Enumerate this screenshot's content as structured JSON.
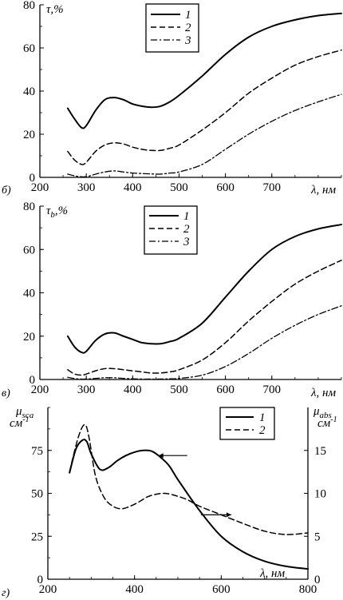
{
  "chart_data": [
    {
      "type": "line",
      "panel_label": "б)",
      "ylabel": "τ,%",
      "xlabel": "λ, нм",
      "xlim": [
        200,
        850
      ],
      "ylim": [
        0,
        80
      ],
      "xticks": [
        200,
        300,
        400,
        500,
        600,
        700
      ],
      "yticks": [
        0,
        20,
        40,
        60,
        80
      ],
      "legend": {
        "placement": "top-center",
        "entries": [
          "1",
          "2",
          "3"
        ]
      },
      "series": [
        {
          "name": "1",
          "style": "solid",
          "x": [
            260,
            275,
            290,
            300,
            320,
            340,
            360,
            380,
            400,
            420,
            440,
            460,
            480,
            500,
            550,
            600,
            650,
            700,
            750,
            800,
            850
          ],
          "y": [
            32,
            27,
            23,
            24,
            31,
            36,
            37,
            36,
            34,
            33,
            32.5,
            33,
            35,
            38,
            47,
            57,
            65,
            70,
            73,
            75,
            76
          ]
        },
        {
          "name": "2",
          "style": "dashed",
          "x": [
            260,
            275,
            290,
            300,
            320,
            340,
            360,
            380,
            400,
            420,
            440,
            460,
            480,
            500,
            550,
            600,
            650,
            700,
            750,
            800,
            850
          ],
          "y": [
            12,
            8,
            6,
            7,
            12,
            15,
            16,
            15.5,
            14,
            13,
            12.5,
            12.5,
            13.5,
            15,
            22,
            30,
            39,
            46,
            52,
            56,
            59
          ]
        },
        {
          "name": "3",
          "style": "dash-dot",
          "x": [
            260,
            280,
            300,
            320,
            340,
            360,
            380,
            400,
            420,
            440,
            460,
            480,
            500,
            550,
            600,
            650,
            700,
            750,
            800,
            850
          ],
          "y": [
            1.5,
            0.5,
            0.3,
            1.5,
            2.5,
            3,
            2.5,
            2,
            1.8,
            1.6,
            1.5,
            2,
            2.5,
            6,
            13,
            20,
            26,
            31,
            35,
            38.5
          ]
        }
      ]
    },
    {
      "type": "line",
      "panel_label": "в)",
      "ylabel": "τb,%",
      "ylabel_main": "τ",
      "ylabel_sub": "b",
      "ylabel_suffix": ",%",
      "xlabel": "λ, нм",
      "xlim": [
        200,
        850
      ],
      "ylim": [
        0,
        80
      ],
      "xticks": [
        200,
        300,
        400,
        500,
        600,
        700
      ],
      "yticks": [
        0,
        20,
        40,
        60,
        80
      ],
      "legend": {
        "placement": "top-center",
        "entries": [
          "1",
          "2",
          "3"
        ]
      },
      "series": [
        {
          "name": "1",
          "style": "solid",
          "x": [
            260,
            275,
            290,
            300,
            320,
            340,
            360,
            380,
            400,
            420,
            440,
            460,
            480,
            500,
            550,
            600,
            650,
            700,
            750,
            800,
            850
          ],
          "y": [
            20,
            15,
            12.5,
            13,
            18,
            21,
            21.5,
            20,
            18.5,
            17,
            16.5,
            16.5,
            17.5,
            19,
            26,
            38,
            50,
            60,
            66,
            69.5,
            71.5
          ]
        },
        {
          "name": "2",
          "style": "dashed",
          "x": [
            260,
            275,
            290,
            300,
            320,
            340,
            360,
            380,
            400,
            420,
            440,
            460,
            480,
            500,
            550,
            600,
            650,
            700,
            750,
            800,
            850
          ],
          "y": [
            4.5,
            2.5,
            2,
            2.5,
            4,
            5,
            5,
            4.5,
            4,
            3.5,
            3,
            3,
            3.5,
            4.5,
            9,
            17,
            27,
            36,
            44,
            50,
            55
          ]
        },
        {
          "name": "3",
          "style": "dash-dot",
          "x": [
            260,
            280,
            300,
            320,
            340,
            360,
            380,
            400,
            420,
            440,
            460,
            480,
            500,
            550,
            600,
            650,
            700,
            750,
            800,
            850
          ],
          "y": [
            1,
            0.3,
            0.2,
            0.5,
            0.8,
            0.8,
            0.5,
            0.3,
            0.2,
            0.2,
            0.2,
            0.3,
            0.5,
            2,
            6,
            12,
            19,
            25,
            30,
            34
          ]
        }
      ]
    },
    {
      "type": "line",
      "panel_label": "г)",
      "ylabel_left": "μsca, см-1",
      "ylabel_left_main": "μ",
      "ylabel_left_sub": "sca",
      "ylabel_left_unit": "см",
      "ylabel_left_exp": "-1",
      "ylabel_right": "μabs, см-1",
      "ylabel_right_main": "μ",
      "ylabel_right_sub": "abs",
      "ylabel_right_unit": "см",
      "ylabel_right_exp": "-1",
      "xlabel": "λ, нм",
      "xlim": [
        200,
        800
      ],
      "ylim_left": [
        0,
        100
      ],
      "ylim_right": [
        0,
        20
      ],
      "xticks": [
        200,
        400,
        600,
        800
      ],
      "yticks_left": [
        0,
        25,
        50,
        75
      ],
      "yticks_right": [
        0,
        5,
        10,
        15
      ],
      "legend": {
        "placement": "top-right",
        "entries": [
          "1",
          "2"
        ]
      },
      "series": [
        {
          "name": "1",
          "style": "solid",
          "axis": "left",
          "x": [
            250,
            265,
            280,
            290,
            300,
            320,
            340,
            360,
            380,
            400,
            420,
            440,
            460,
            480,
            500,
            550,
            600,
            650,
            700,
            750,
            800
          ],
          "y": [
            62,
            76,
            81,
            80,
            73,
            64,
            65,
            69,
            72,
            74,
            75,
            74.5,
            71,
            66,
            58,
            40,
            25,
            16,
            10.5,
            7.5,
            6
          ]
        },
        {
          "name": "2",
          "style": "dashed",
          "axis": "right",
          "x": [
            250,
            270,
            285,
            295,
            310,
            330,
            350,
            370,
            390,
            410,
            430,
            450,
            470,
            490,
            520,
            550,
            600,
            650,
            700,
            750,
            800
          ],
          "y": [
            12.5,
            16.5,
            18,
            16.5,
            12,
            9.5,
            8.5,
            8.2,
            8.5,
            9,
            9.6,
            9.9,
            10,
            9.8,
            9.3,
            8.5,
            7.5,
            6.5,
            5.6,
            5.2,
            5.4
          ]
        }
      ],
      "annotations": [
        {
          "type": "arrow",
          "direction": "left",
          "series": "1"
        },
        {
          "type": "arrow",
          "direction": "right",
          "series": "2"
        }
      ]
    }
  ]
}
